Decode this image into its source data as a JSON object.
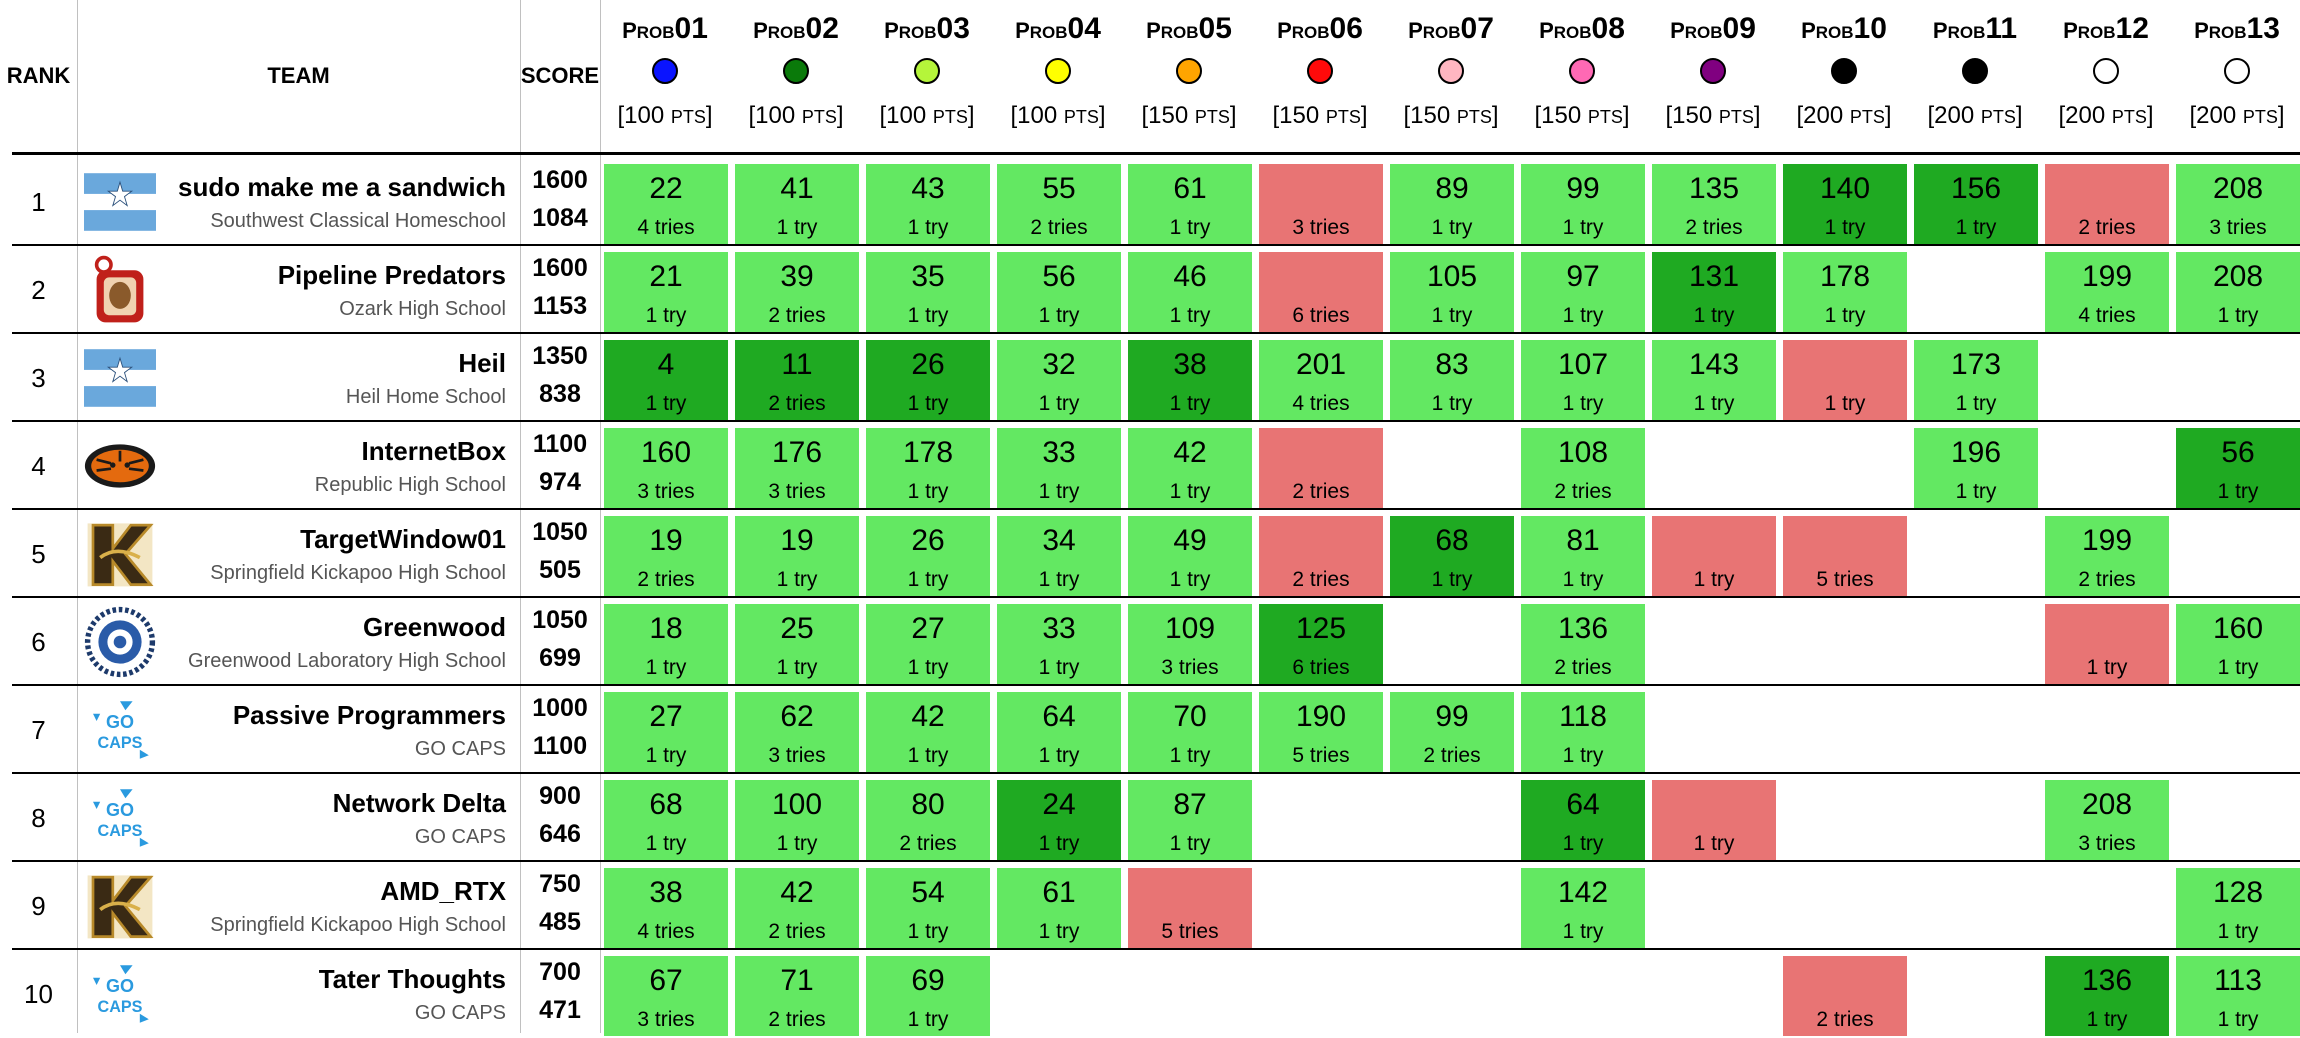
{
  "header": {
    "rank": "RANK",
    "team": "TEAM",
    "score": "SCORE"
  },
  "problems": [
    {
      "pre": "P",
      "mid": "ROB",
      "num": "01",
      "color": "#0a14ff",
      "pts": "100",
      "ptslabel": "PTS"
    },
    {
      "pre": "P",
      "mid": "ROB",
      "num": "02",
      "color": "#0a7a0a",
      "pts": "100",
      "ptslabel": "PTS"
    },
    {
      "pre": "P",
      "mid": "ROB",
      "num": "03",
      "color": "#b5f53a",
      "pts": "100",
      "ptslabel": "PTS"
    },
    {
      "pre": "P",
      "mid": "ROB",
      "num": "04",
      "color": "#ffff00",
      "pts": "100",
      "ptslabel": "PTS"
    },
    {
      "pre": "P",
      "mid": "ROB",
      "num": "05",
      "color": "#ffa500",
      "pts": "150",
      "ptslabel": "PTS"
    },
    {
      "pre": "P",
      "mid": "ROB",
      "num": "06",
      "color": "#ff0a0a",
      "pts": "150",
      "ptslabel": "PTS"
    },
    {
      "pre": "P",
      "mid": "ROB",
      "num": "07",
      "color": "#ffb6c1",
      "pts": "150",
      "ptslabel": "PTS"
    },
    {
      "pre": "P",
      "mid": "ROB",
      "num": "08",
      "color": "#ff69b4",
      "pts": "150",
      "ptslabel": "PTS"
    },
    {
      "pre": "P",
      "mid": "ROB",
      "num": "09",
      "color": "#800080",
      "pts": "150",
      "ptslabel": "PTS"
    },
    {
      "pre": "P",
      "mid": "ROB",
      "num": "10",
      "color": "#000000",
      "pts": "200",
      "ptslabel": "PTS"
    },
    {
      "pre": "P",
      "mid": "ROB",
      "num": "11",
      "color": "#000000",
      "pts": "200",
      "ptslabel": "PTS"
    },
    {
      "pre": "P",
      "mid": "ROB",
      "num": "12",
      "color": "#ffffff",
      "pts": "200",
      "ptslabel": "PTS"
    },
    {
      "pre": "P",
      "mid": "ROB",
      "num": "13",
      "color": "#ffffff",
      "pts": "200",
      "ptslabel": "PTS"
    }
  ],
  "colors": {
    "solved": "#63e862",
    "first_solve": "#1faa22",
    "failed": "#e87474"
  },
  "teams": [
    {
      "rank": "1",
      "name": "sudo make me a sandwich",
      "school": "Southwest Classical Homeschool",
      "score": "1600",
      "penalty": "1084",
      "logo": "flag",
      "cells": [
        {
          "s": "g",
          "time": "22",
          "tries": "4 tries"
        },
        {
          "s": "g",
          "time": "41",
          "tries": "1 try"
        },
        {
          "s": "g",
          "time": "43",
          "tries": "1 try"
        },
        {
          "s": "g",
          "time": "55",
          "tries": "2 tries"
        },
        {
          "s": "g",
          "time": "61",
          "tries": "1 try"
        },
        {
          "s": "r",
          "time": "",
          "tries": "3 tries"
        },
        {
          "s": "g",
          "time": "89",
          "tries": "1 try"
        },
        {
          "s": "g",
          "time": "99",
          "tries": "1 try"
        },
        {
          "s": "g",
          "time": "135",
          "tries": "2 tries"
        },
        {
          "s": "d",
          "time": "140",
          "tries": "1 try"
        },
        {
          "s": "d",
          "time": "156",
          "tries": "1 try"
        },
        {
          "s": "r",
          "time": "",
          "tries": "2 tries"
        },
        {
          "s": "g",
          "time": "208",
          "tries": "3 tries"
        }
      ]
    },
    {
      "rank": "2",
      "name": "Pipeline Predators",
      "school": "Ozark High School",
      "score": "1600",
      "penalty": "1153",
      "logo": "ozark",
      "cells": [
        {
          "s": "g",
          "time": "21",
          "tries": "1 try"
        },
        {
          "s": "g",
          "time": "39",
          "tries": "2 tries"
        },
        {
          "s": "g",
          "time": "35",
          "tries": "1 try"
        },
        {
          "s": "g",
          "time": "56",
          "tries": "1 try"
        },
        {
          "s": "g",
          "time": "46",
          "tries": "1 try"
        },
        {
          "s": "r",
          "time": "",
          "tries": "6 tries"
        },
        {
          "s": "g",
          "time": "105",
          "tries": "1 try"
        },
        {
          "s": "g",
          "time": "97",
          "tries": "1 try"
        },
        {
          "s": "d",
          "time": "131",
          "tries": "1 try"
        },
        {
          "s": "g",
          "time": "178",
          "tries": "1 try"
        },
        {
          "s": "",
          "time": "",
          "tries": ""
        },
        {
          "s": "g",
          "time": "199",
          "tries": "4 tries"
        },
        {
          "s": "g",
          "time": "208",
          "tries": "1 try"
        }
      ]
    },
    {
      "rank": "3",
      "name": "Heil",
      "school": "Heil Home School",
      "score": "1350",
      "penalty": "838",
      "logo": "flag",
      "cells": [
        {
          "s": "d",
          "time": "4",
          "tries": "1 try"
        },
        {
          "s": "d",
          "time": "11",
          "tries": "2 tries"
        },
        {
          "s": "d",
          "time": "26",
          "tries": "1 try"
        },
        {
          "s": "g",
          "time": "32",
          "tries": "1 try"
        },
        {
          "s": "d",
          "time": "38",
          "tries": "1 try"
        },
        {
          "s": "g",
          "time": "201",
          "tries": "4 tries"
        },
        {
          "s": "g",
          "time": "83",
          "tries": "1 try"
        },
        {
          "s": "g",
          "time": "107",
          "tries": "1 try"
        },
        {
          "s": "g",
          "time": "143",
          "tries": "1 try"
        },
        {
          "s": "r",
          "time": "",
          "tries": "1 try"
        },
        {
          "s": "g",
          "time": "173",
          "tries": "1 try"
        },
        {
          "s": "",
          "time": "",
          "tries": ""
        },
        {
          "s": "",
          "time": "",
          "tries": ""
        }
      ]
    },
    {
      "rank": "4",
      "name": "InternetBox",
      "school": "Republic High School",
      "score": "1100",
      "penalty": "974",
      "logo": "tiger",
      "cells": [
        {
          "s": "g",
          "time": "160",
          "tries": "3 tries"
        },
        {
          "s": "g",
          "time": "176",
          "tries": "3 tries"
        },
        {
          "s": "g",
          "time": "178",
          "tries": "1 try"
        },
        {
          "s": "g",
          "time": "33",
          "tries": "1 try"
        },
        {
          "s": "g",
          "time": "42",
          "tries": "1 try"
        },
        {
          "s": "r",
          "time": "",
          "tries": "2 tries"
        },
        {
          "s": "",
          "time": "",
          "tries": ""
        },
        {
          "s": "g",
          "time": "108",
          "tries": "2 tries"
        },
        {
          "s": "",
          "time": "",
          "tries": ""
        },
        {
          "s": "",
          "time": "",
          "tries": ""
        },
        {
          "s": "g",
          "time": "196",
          "tries": "1 try"
        },
        {
          "s": "",
          "time": "",
          "tries": ""
        },
        {
          "s": "d",
          "time": "56",
          "tries": "1 try"
        }
      ]
    },
    {
      "rank": "5",
      "name": "TargetWindow01",
      "school": "Springfield Kickapoo High School",
      "score": "1050",
      "penalty": "505",
      "logo": "kickapoo",
      "cells": [
        {
          "s": "g",
          "time": "19",
          "tries": "2 tries"
        },
        {
          "s": "g",
          "time": "19",
          "tries": "1 try"
        },
        {
          "s": "g",
          "time": "26",
          "tries": "1 try"
        },
        {
          "s": "g",
          "time": "34",
          "tries": "1 try"
        },
        {
          "s": "g",
          "time": "49",
          "tries": "1 try"
        },
        {
          "s": "r",
          "time": "",
          "tries": "2 tries"
        },
        {
          "s": "d",
          "time": "68",
          "tries": "1 try"
        },
        {
          "s": "g",
          "time": "81",
          "tries": "1 try"
        },
        {
          "s": "r",
          "time": "",
          "tries": "1 try"
        },
        {
          "s": "r",
          "time": "",
          "tries": "5 tries"
        },
        {
          "s": "",
          "time": "",
          "tries": ""
        },
        {
          "s": "g",
          "time": "199",
          "tries": "2 tries"
        },
        {
          "s": "",
          "time": "",
          "tries": ""
        }
      ]
    },
    {
      "rank": "6",
      "name": "Greenwood",
      "school": "Greenwood Laboratory High School",
      "score": "1050",
      "penalty": "699",
      "logo": "seal",
      "cells": [
        {
          "s": "g",
          "time": "18",
          "tries": "1 try"
        },
        {
          "s": "g",
          "time": "25",
          "tries": "1 try"
        },
        {
          "s": "g",
          "time": "27",
          "tries": "1 try"
        },
        {
          "s": "g",
          "time": "33",
          "tries": "1 try"
        },
        {
          "s": "g",
          "time": "109",
          "tries": "3 tries"
        },
        {
          "s": "d",
          "time": "125",
          "tries": "6 tries"
        },
        {
          "s": "",
          "time": "",
          "tries": ""
        },
        {
          "s": "g",
          "time": "136",
          "tries": "2 tries"
        },
        {
          "s": "",
          "time": "",
          "tries": ""
        },
        {
          "s": "",
          "time": "",
          "tries": ""
        },
        {
          "s": "",
          "time": "",
          "tries": ""
        },
        {
          "s": "r",
          "time": "",
          "tries": "1 try"
        },
        {
          "s": "g",
          "time": "160",
          "tries": "1 try"
        }
      ]
    },
    {
      "rank": "7",
      "name": "Passive Programmers",
      "school": "GO CAPS",
      "score": "1000",
      "penalty": "1100",
      "logo": "gocaps",
      "cells": [
        {
          "s": "g",
          "time": "27",
          "tries": "1 try"
        },
        {
          "s": "g",
          "time": "62",
          "tries": "3 tries"
        },
        {
          "s": "g",
          "time": "42",
          "tries": "1 try"
        },
        {
          "s": "g",
          "time": "64",
          "tries": "1 try"
        },
        {
          "s": "g",
          "time": "70",
          "tries": "1 try"
        },
        {
          "s": "g",
          "time": "190",
          "tries": "5 tries"
        },
        {
          "s": "g",
          "time": "99",
          "tries": "2 tries"
        },
        {
          "s": "g",
          "time": "118",
          "tries": "1 try"
        },
        {
          "s": "",
          "time": "",
          "tries": ""
        },
        {
          "s": "",
          "time": "",
          "tries": ""
        },
        {
          "s": "",
          "time": "",
          "tries": ""
        },
        {
          "s": "",
          "time": "",
          "tries": ""
        },
        {
          "s": "",
          "time": "",
          "tries": ""
        }
      ]
    },
    {
      "rank": "8",
      "name": "Network Delta",
      "school": "GO CAPS",
      "score": "900",
      "penalty": "646",
      "logo": "gocaps",
      "cells": [
        {
          "s": "g",
          "time": "68",
          "tries": "1 try"
        },
        {
          "s": "g",
          "time": "100",
          "tries": "1 try"
        },
        {
          "s": "g",
          "time": "80",
          "tries": "2 tries"
        },
        {
          "s": "d",
          "time": "24",
          "tries": "1 try"
        },
        {
          "s": "g",
          "time": "87",
          "tries": "1 try"
        },
        {
          "s": "",
          "time": "",
          "tries": ""
        },
        {
          "s": "",
          "time": "",
          "tries": ""
        },
        {
          "s": "d",
          "time": "64",
          "tries": "1 try"
        },
        {
          "s": "r",
          "time": "",
          "tries": "1 try"
        },
        {
          "s": "",
          "time": "",
          "tries": ""
        },
        {
          "s": "",
          "time": "",
          "tries": ""
        },
        {
          "s": "g",
          "time": "208",
          "tries": "3 tries"
        },
        {
          "s": "",
          "time": "",
          "tries": ""
        }
      ]
    },
    {
      "rank": "9",
      "name": "AMD_RTX",
      "school": "Springfield Kickapoo High School",
      "score": "750",
      "penalty": "485",
      "logo": "kickapoo",
      "cells": [
        {
          "s": "g",
          "time": "38",
          "tries": "4 tries"
        },
        {
          "s": "g",
          "time": "42",
          "tries": "2 tries"
        },
        {
          "s": "g",
          "time": "54",
          "tries": "1 try"
        },
        {
          "s": "g",
          "time": "61",
          "tries": "1 try"
        },
        {
          "s": "r",
          "time": "",
          "tries": "5 tries"
        },
        {
          "s": "",
          "time": "",
          "tries": ""
        },
        {
          "s": "",
          "time": "",
          "tries": ""
        },
        {
          "s": "g",
          "time": "142",
          "tries": "1 try"
        },
        {
          "s": "",
          "time": "",
          "tries": ""
        },
        {
          "s": "",
          "time": "",
          "tries": ""
        },
        {
          "s": "",
          "time": "",
          "tries": ""
        },
        {
          "s": "",
          "time": "",
          "tries": ""
        },
        {
          "s": "g",
          "time": "128",
          "tries": "1 try"
        }
      ]
    },
    {
      "rank": "10",
      "name": "Tater Thoughts",
      "school": "GO CAPS",
      "score": "700",
      "penalty": "471",
      "logo": "gocaps",
      "cells": [
        {
          "s": "g",
          "time": "67",
          "tries": "3 tries"
        },
        {
          "s": "g",
          "time": "71",
          "tries": "2 tries"
        },
        {
          "s": "g",
          "time": "69",
          "tries": "1 try"
        },
        {
          "s": "",
          "time": "",
          "tries": ""
        },
        {
          "s": "",
          "time": "",
          "tries": ""
        },
        {
          "s": "",
          "time": "",
          "tries": ""
        },
        {
          "s": "",
          "time": "",
          "tries": ""
        },
        {
          "s": "",
          "time": "",
          "tries": ""
        },
        {
          "s": "",
          "time": "",
          "tries": ""
        },
        {
          "s": "r",
          "time": "",
          "tries": "2 tries"
        },
        {
          "s": "",
          "time": "",
          "tries": ""
        },
        {
          "s": "d",
          "time": "136",
          "tries": "1 try"
        },
        {
          "s": "g",
          "time": "113",
          "tries": "1 try"
        }
      ]
    }
  ]
}
